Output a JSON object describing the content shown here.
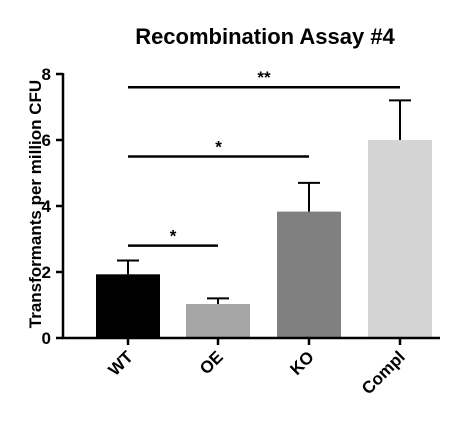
{
  "chart_data": {
    "type": "bar",
    "title": "Recombination Assay #4",
    "xlabel": "",
    "ylabel": "Transformants per million CFU",
    "categories": [
      "WT",
      "OE",
      "KO",
      "Compl"
    ],
    "values": [
      1.93,
      1.03,
      3.83,
      6.0
    ],
    "errors": [
      0.42,
      0.17,
      0.87,
      1.2
    ],
    "bar_colors": [
      "#000000",
      "#a6a6a6",
      "#808080",
      "#d4d4d4"
    ],
    "ylim": [
      0,
      8
    ],
    "yticks": [
      "0",
      "2",
      "4",
      "6",
      "8"
    ],
    "grid": false,
    "legend": "none",
    "significance": [
      {
        "from": 0,
        "to": 1,
        "label": "*",
        "level": 2.8
      },
      {
        "from": 0,
        "to": 2,
        "label": "*",
        "level": 5.5
      },
      {
        "from": 0,
        "to": 3,
        "label": "**",
        "level": 7.6
      }
    ]
  }
}
